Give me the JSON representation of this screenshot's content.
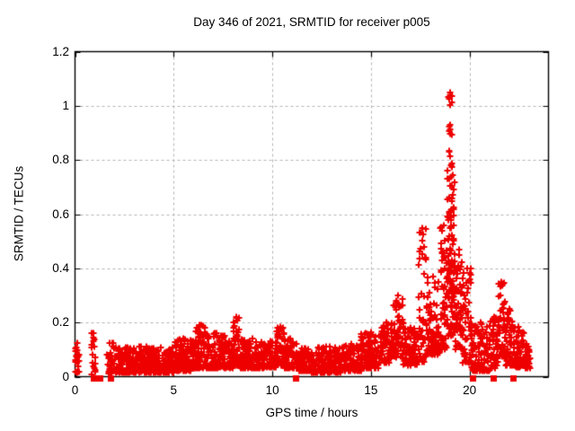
{
  "chart_data": {
    "type": "scatter",
    "title": "Day 346 of 2021, SRMTID for receiver p005",
    "xlabel": "GPS time / hours",
    "ylabel": "SRMTID / TECUs",
    "xlim": [
      0,
      24
    ],
    "ylim": [
      0,
      1.2
    ],
    "x_ticks": [
      0,
      5,
      10,
      15,
      20
    ],
    "x_tick_labels": [
      "0",
      "5",
      "10",
      "15",
      "20"
    ],
    "y_ticks": [
      0,
      0.2,
      0.4,
      0.6,
      0.8,
      1,
      1.2
    ],
    "y_tick_labels": [
      "0",
      "0.2",
      "0.4",
      "0.6",
      "0.8",
      "1",
      "1.2"
    ],
    "grid": "dashed gray lines at major ticks, both axes",
    "legend": "none",
    "marker": "plus",
    "secondary_marker": "filled-square-on-zero-line",
    "colors": {
      "marker": "#ee0000",
      "grid": "#b4b4b4",
      "axis": "#000000",
      "text": "#000000",
      "background": "#ffffff"
    },
    "peak": {
      "x_hours": 19.0,
      "y_tecus": 1.05
    },
    "notable_features": [
      "dense baseline band ~0.02-0.11 TECUs from hour 2 to 15",
      "data gap near hours 1.1-1.6",
      "isolated spike column at hour ~0.9 up to 0.16",
      "spike to ~0.22 at hour 8.2",
      "bump to ~0.30 at hour 16.2-16.6",
      "precursor spikes ~0.55 at hour 17.5",
      "main peak ~1.05 at hour 19.0",
      "secondary spike ~0.35 at hour 21.6",
      "data ends near hour 23.0"
    ],
    "scatter_envelope_fields": [
      "x_start_hours",
      "x_end_hours",
      "y_min",
      "y_max",
      "point_count",
      "low_bias_exponent"
    ],
    "scatter_envelope": [
      [
        0.0,
        0.22,
        0.015,
        0.125,
        22,
        1.3
      ],
      [
        0.84,
        1.02,
        0.005,
        0.16,
        18,
        1.0
      ],
      [
        1.6,
        2.2,
        0.01,
        0.125,
        45,
        1.6
      ],
      [
        2.2,
        5.0,
        0.015,
        0.11,
        330,
        1.8
      ],
      [
        5.0,
        6.0,
        0.02,
        0.14,
        120,
        1.8
      ],
      [
        6.0,
        6.6,
        0.03,
        0.19,
        75,
        1.7
      ],
      [
        6.6,
        7.6,
        0.03,
        0.16,
        115,
        1.8
      ],
      [
        7.6,
        8.0,
        0.03,
        0.13,
        48,
        1.6
      ],
      [
        8.0,
        8.35,
        0.04,
        0.22,
        40,
        1.4
      ],
      [
        8.35,
        9.6,
        0.03,
        0.14,
        140,
        1.8
      ],
      [
        9.6,
        10.2,
        0.035,
        0.13,
        70,
        1.6
      ],
      [
        10.2,
        10.6,
        0.04,
        0.185,
        48,
        1.5
      ],
      [
        10.6,
        11.25,
        0.03,
        0.14,
        70,
        1.7
      ],
      [
        11.25,
        12.0,
        0.02,
        0.105,
        85,
        1.7
      ],
      [
        12.0,
        13.5,
        0.015,
        0.11,
        165,
        1.8
      ],
      [
        13.5,
        14.5,
        0.02,
        0.12,
        110,
        1.7
      ],
      [
        14.5,
        15.5,
        0.03,
        0.165,
        110,
        1.6
      ],
      [
        15.5,
        16.1,
        0.05,
        0.2,
        70,
        1.5
      ],
      [
        16.1,
        16.65,
        0.07,
        0.3,
        60,
        1.5
      ],
      [
        16.65,
        17.4,
        0.04,
        0.18,
        80,
        1.6
      ],
      [
        17.4,
        17.8,
        0.05,
        0.55,
        50,
        2.2
      ],
      [
        17.8,
        18.5,
        0.08,
        0.37,
        90,
        1.8
      ],
      [
        18.5,
        18.85,
        0.1,
        0.56,
        55,
        1.6
      ],
      [
        18.85,
        19.25,
        0.15,
        0.78,
        85,
        1.3
      ],
      [
        18.92,
        19.12,
        0.3,
        1.05,
        45,
        1.1
      ],
      [
        19.25,
        19.65,
        0.1,
        0.47,
        60,
        1.5
      ],
      [
        19.65,
        20.1,
        0.05,
        0.4,
        55,
        1.8
      ],
      [
        20.1,
        21.05,
        0.02,
        0.2,
        105,
        1.7
      ],
      [
        21.05,
        21.45,
        0.03,
        0.22,
        50,
        1.6
      ],
      [
        21.45,
        21.8,
        0.07,
        0.35,
        48,
        1.5
      ],
      [
        21.8,
        22.2,
        0.04,
        0.25,
        50,
        1.7
      ],
      [
        22.2,
        22.75,
        0.035,
        0.185,
        60,
        1.6
      ],
      [
        22.75,
        23.05,
        0.03,
        0.12,
        35,
        1.5
      ]
    ],
    "zero_line_squares_x_hours": [
      0.95,
      1.25,
      1.8,
      11.2,
      20.15,
      21.2,
      22.2
    ]
  }
}
